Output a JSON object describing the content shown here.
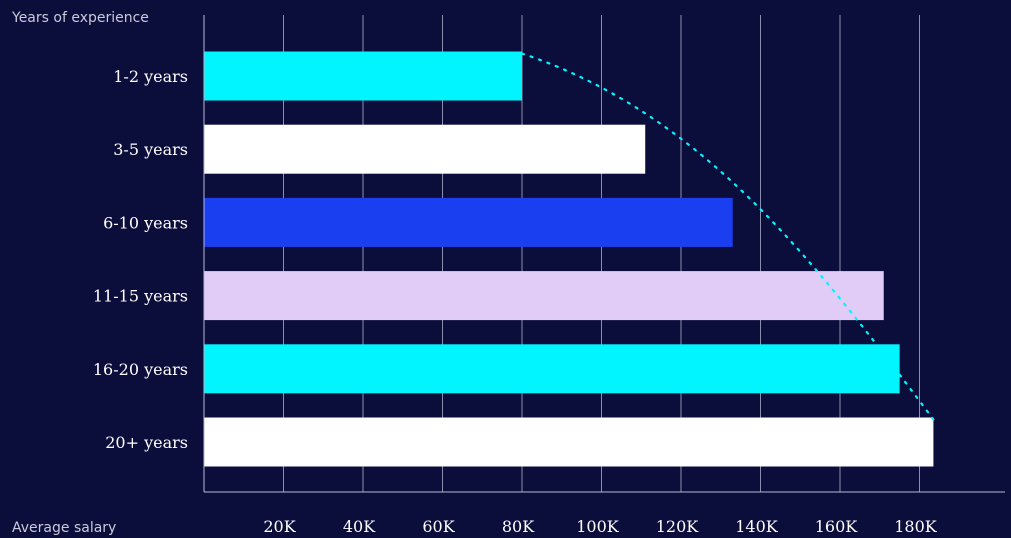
{
  "chart_data": {
    "type": "bar",
    "orientation": "horizontal",
    "ylabel": "Years of experience",
    "xlabel": "Average salary",
    "categories": [
      "1-2 years",
      "3-5 years",
      "6-10 years",
      "11-15 years",
      "16-20 years",
      "20+ years"
    ],
    "values": [
      80000,
      111000,
      133000,
      171000,
      175000,
      183500
    ],
    "bar_colors": [
      "#00f5ff",
      "#ffffff",
      "#1a3ff0",
      "#e0ccf7",
      "#00f5ff",
      "#ffffff"
    ],
    "xlim": [
      0,
      200000
    ],
    "xticks": [
      20000,
      40000,
      60000,
      80000,
      100000,
      120000,
      140000,
      160000,
      180000
    ],
    "xtick_labels": [
      "20K",
      "40K",
      "60K",
      "80K",
      "100K",
      "120K",
      "140K",
      "160K",
      "180K"
    ],
    "grid": true,
    "trend_line": {
      "style": "dotted",
      "color": "#00f5ff"
    },
    "colors": {
      "background": "#0b0d3b",
      "grid": "#b8b9d6",
      "text": "#ffffff",
      "axis_title": "#c9cadb"
    }
  }
}
